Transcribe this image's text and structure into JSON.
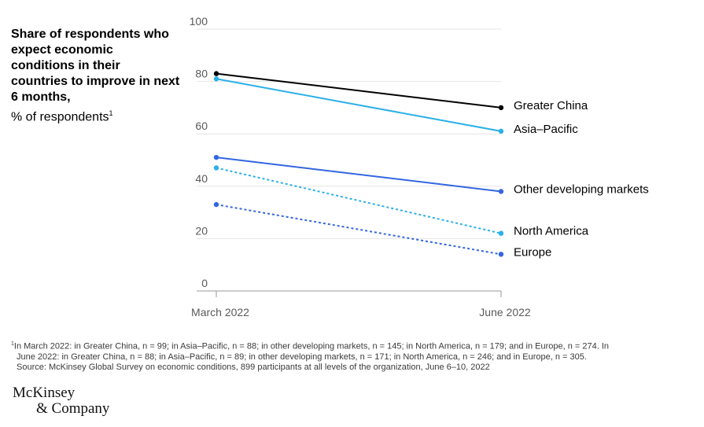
{
  "title": {
    "main": "Share of respondents who expect economic conditions in their countries to improve in next 6 months,",
    "unit": "% of respondents",
    "unit_marker": "1"
  },
  "chart_data": {
    "type": "line",
    "categories": [
      "March 2022",
      "June 2022"
    ],
    "ylim": [
      0,
      100
    ],
    "yticks": [
      0,
      20,
      40,
      60,
      80,
      100
    ],
    "grid": true,
    "legend": "end-of-line labels",
    "series": [
      {
        "name": "Greater China",
        "values": [
          83,
          70
        ],
        "color": "#000000",
        "dash": "solid"
      },
      {
        "name": "Asia–Pacific",
        "values": [
          81,
          61
        ],
        "color": "#2bb0e8",
        "dash": "solid"
      },
      {
        "name": "Other developing markets",
        "values": [
          51,
          38
        ],
        "color": "#3366e0",
        "dash": "solid"
      },
      {
        "name": "North America",
        "values": [
          47,
          22
        ],
        "color": "#2bb0e8",
        "dash": "dashed"
      },
      {
        "name": "Europe",
        "values": [
          33,
          14
        ],
        "color": "#3366e0",
        "dash": "dashed"
      }
    ]
  },
  "footnotes": {
    "marker": "1",
    "line1": "In March 2022: in Greater China, n = 99; in Asia–Pacific, n = 88; in other developing markets, n = 145; in North America, n = 179; and in Europe, n = 274. In",
    "line2": "June 2022: in Greater China, n = 88; in Asia–Pacific, n = 89; in other developing markets, n = 171; in North America, n = 246; and in Europe, n = 305.",
    "source": "Source: McKinsey Global Survey on economic conditions, 899 participants at all levels of the organization, June 6–10, 2022"
  },
  "logo": {
    "line1": "McKinsey",
    "line2": "& Company"
  }
}
